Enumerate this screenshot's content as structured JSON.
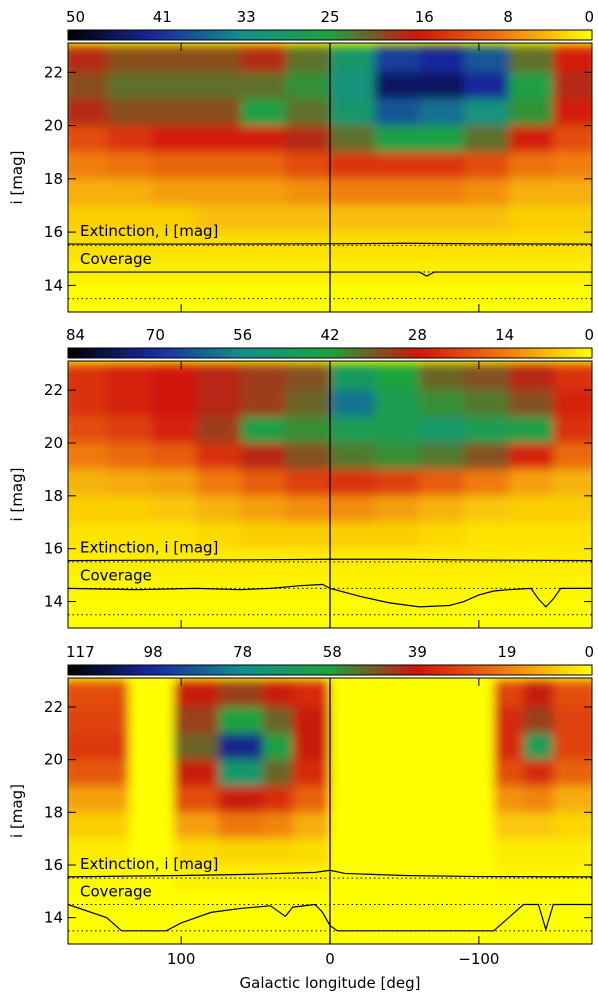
{
  "chart_data": [
    {
      "type": "heatmap",
      "clim": [
        50,
        0
      ],
      "cticks": [
        50,
        41,
        33,
        25,
        16,
        8,
        0
      ],
      "colormap": [
        "#000000",
        "#1a2aa0",
        "#12908a",
        "#1ea23c",
        "#d0140c",
        "#f07a10",
        "#ffff00"
      ],
      "xlim": [
        176,
        -176
      ],
      "xticks": [
        100,
        0,
        -100
      ],
      "ylim": [
        13,
        23.1
      ],
      "yticks": [
        14,
        16,
        18,
        20,
        22
      ],
      "ylabel": "i [mag]",
      "xbins": [
        180,
        150,
        120,
        90,
        60,
        30,
        0,
        -30,
        -60,
        -90,
        -120,
        -150,
        -180
      ],
      "ybins": [
        23,
        22,
        21,
        20,
        19,
        18,
        17,
        16,
        15,
        14,
        13
      ],
      "z": [
        [
          18,
          20,
          20,
          20,
          18,
          22,
          30,
          40,
          42,
          38,
          22,
          16
        ],
        [
          20,
          22,
          22,
          22,
          22,
          24,
          32,
          45,
          45,
          42,
          26,
          18
        ],
        [
          18,
          20,
          20,
          20,
          26,
          22,
          30,
          38,
          36,
          32,
          24,
          16
        ],
        [
          12,
          14,
          16,
          16,
          16,
          18,
          22,
          26,
          26,
          22,
          16,
          12
        ],
        [
          8,
          9,
          10,
          10,
          10,
          12,
          14,
          14,
          14,
          12,
          9,
          8
        ],
        [
          5,
          5,
          6,
          6,
          6,
          7,
          8,
          8,
          8,
          7,
          5,
          5
        ],
        [
          3,
          3,
          3,
          4,
          4,
          4,
          4,
          4,
          4,
          4,
          3,
          3
        ],
        [
          2,
          2,
          2,
          2,
          2,
          2,
          2,
          2,
          2,
          2,
          2,
          2
        ],
        [
          1,
          1,
          1,
          1,
          1,
          1,
          1,
          1,
          1,
          1,
          1,
          1
        ],
        [
          0,
          0,
          0,
          0,
          0,
          0,
          0,
          0,
          0,
          0,
          0,
          0
        ]
      ],
      "hlines": [
        15.5,
        14.5,
        13.5
      ],
      "vline": 0,
      "series": [
        {
          "name": "Extinction, i [mag]",
          "color": "#000000",
          "x": [
            176,
            100,
            0,
            -50,
            -100,
            -176
          ],
          "values": [
            15.55,
            15.55,
            15.56,
            15.58,
            15.56,
            15.55
          ]
        },
        {
          "name": "Coverage",
          "color": "#000000",
          "x": [
            176,
            -60,
            -65,
            -70,
            -176
          ],
          "values": [
            14.5,
            14.5,
            14.35,
            14.5,
            14.5
          ]
        }
      ]
    },
    {
      "type": "heatmap",
      "clim": [
        84,
        0
      ],
      "cticks": [
        84,
        70,
        56,
        42,
        28,
        14,
        0
      ],
      "colormap": [
        "#000000",
        "#1a2aa0",
        "#12908a",
        "#1ea23c",
        "#d0140c",
        "#f07a10",
        "#ffff00"
      ],
      "xlim": [
        176,
        -176
      ],
      "xticks": [
        100,
        0,
        -100
      ],
      "ylim": [
        13,
        23.1
      ],
      "yticks": [
        14,
        16,
        18,
        20,
        22
      ],
      "ylabel": "i [mag]",
      "xbins": [
        180,
        150,
        120,
        90,
        60,
        30,
        0,
        -30,
        -60,
        -90,
        -120,
        -150,
        -180
      ],
      "ybins": [
        23,
        22,
        21,
        20,
        19,
        18,
        17,
        16,
        15,
        14,
        13
      ],
      "z": [
        [
          24,
          26,
          28,
          30,
          32,
          34,
          48,
          42,
          36,
          34,
          30,
          24
        ],
        [
          24,
          26,
          28,
          30,
          32,
          36,
          60,
          46,
          40,
          38,
          34,
          26
        ],
        [
          20,
          22,
          26,
          32,
          44,
          40,
          46,
          46,
          50,
          46,
          44,
          24
        ],
        [
          14,
          16,
          18,
          24,
          30,
          34,
          38,
          40,
          38,
          34,
          26,
          16
        ],
        [
          8,
          9,
          10,
          14,
          18,
          22,
          24,
          22,
          18,
          14,
          10,
          8
        ],
        [
          5,
          5,
          6,
          8,
          10,
          12,
          12,
          10,
          8,
          6,
          5,
          5
        ],
        [
          3,
          3,
          3,
          4,
          5,
          5,
          5,
          5,
          4,
          3,
          3,
          3
        ],
        [
          2,
          2,
          2,
          2,
          2,
          2,
          2,
          2,
          2,
          2,
          2,
          2
        ],
        [
          1,
          1,
          1,
          1,
          1,
          1,
          1,
          1,
          1,
          1,
          1,
          1
        ],
        [
          0,
          0,
          0,
          0,
          0,
          0,
          0,
          0,
          0,
          0,
          0,
          0
        ]
      ],
      "hlines": [
        15.5,
        14.5,
        13.5
      ],
      "vline": 0,
      "series": [
        {
          "name": "Extinction, i [mag]",
          "color": "#000000",
          "x": [
            176,
            100,
            50,
            0,
            -50,
            -100,
            -176
          ],
          "values": [
            15.55,
            15.57,
            15.58,
            15.6,
            15.6,
            15.57,
            15.55
          ]
        },
        {
          "name": "Coverage",
          "color": "#000000",
          "x": [
            176,
            130,
            90,
            60,
            40,
            20,
            5,
            0,
            -20,
            -40,
            -60,
            -80,
            -90,
            -100,
            -110,
            -120,
            -135,
            -140,
            -145,
            -150,
            -155,
            -176
          ],
          "values": [
            14.5,
            14.45,
            14.5,
            14.45,
            14.5,
            14.6,
            14.65,
            14.5,
            14.2,
            13.95,
            13.8,
            13.85,
            14.0,
            14.25,
            14.4,
            14.45,
            14.5,
            14.1,
            13.8,
            14.1,
            14.5,
            14.5
          ]
        }
      ]
    },
    {
      "type": "heatmap",
      "clim": [
        117,
        0
      ],
      "cticks": [
        117,
        98,
        78,
        58,
        39,
        19,
        0
      ],
      "colormap": [
        "#000000",
        "#1a2aa0",
        "#12908a",
        "#1ea23c",
        "#d0140c",
        "#f07a10",
        "#ffff00"
      ],
      "xlim": [
        176,
        -176
      ],
      "xticks": [
        100,
        0,
        {
          "value": -100,
          "label": "−100"
        }
      ],
      "xlabel": "Galactic longitude [deg]",
      "ylim": [
        13,
        23.1
      ],
      "yticks": [
        14,
        16,
        18,
        20,
        22
      ],
      "ylabel": "i [mag]",
      "xbins": [
        180,
        135,
        105,
        75,
        45,
        25,
        0,
        -110,
        -130,
        -150,
        -180
      ],
      "ybins": [
        23,
        22,
        21,
        20,
        19,
        18,
        17,
        16,
        15,
        14,
        13
      ],
      "z": [
        [
          28,
          0,
          40,
          45,
          40,
          35,
          0,
          30,
          40,
          28
        ],
        [
          30,
          0,
          45,
          60,
          50,
          40,
          0,
          35,
          45,
          30
        ],
        [
          32,
          0,
          50,
          100,
          60,
          40,
          0,
          35,
          65,
          30
        ],
        [
          26,
          0,
          40,
          70,
          50,
          35,
          0,
          28,
          35,
          24
        ],
        [
          14,
          0,
          28,
          40,
          34,
          24,
          0,
          16,
          18,
          12
        ],
        [
          7,
          0,
          14,
          20,
          18,
          12,
          0,
          8,
          8,
          6
        ],
        [
          3,
          0,
          5,
          6,
          6,
          5,
          0,
          3,
          3,
          3
        ],
        [
          1,
          0,
          2,
          2,
          2,
          2,
          0,
          1,
          1,
          1
        ],
        [
          0,
          0,
          0,
          0,
          0,
          0,
          0,
          0,
          0,
          0
        ],
        [
          0,
          0,
          0,
          0,
          0,
          0,
          0,
          0,
          0,
          0
        ]
      ],
      "hlines": [
        15.5,
        14.5,
        13.5
      ],
      "vline": 0,
      "series": [
        {
          "name": "Extinction, i [mag]",
          "color": "#000000",
          "x": [
            176,
            100,
            50,
            10,
            0,
            -10,
            -50,
            -100,
            -176
          ],
          "values": [
            15.55,
            15.6,
            15.65,
            15.72,
            15.8,
            15.68,
            15.6,
            15.56,
            15.55
          ]
        },
        {
          "name": "Coverage",
          "color": "#000000",
          "x": [
            176,
            150,
            140,
            110,
            100,
            80,
            60,
            40,
            30,
            25,
            10,
            5,
            0,
            -5,
            -110,
            -120,
            -130,
            -140,
            -145,
            -150,
            -176
          ],
          "values": [
            14.5,
            14.0,
            13.5,
            13.5,
            13.8,
            14.2,
            14.35,
            14.45,
            14.05,
            14.4,
            14.5,
            14.2,
            13.7,
            13.5,
            13.5,
            14.0,
            14.5,
            14.5,
            13.55,
            14.5,
            14.5
          ]
        }
      ]
    }
  ]
}
